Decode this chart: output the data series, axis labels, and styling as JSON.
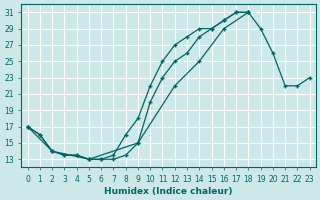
{
  "xlabel": "Humidex (Indice chaleur)",
  "bg_color": "#cce8e8",
  "line_color": "#006666",
  "grid_color": "#ffffff",
  "xlim": [
    -0.5,
    23.5
  ],
  "ylim": [
    12,
    32
  ],
  "xticks": [
    0,
    1,
    2,
    3,
    4,
    5,
    6,
    7,
    8,
    9,
    10,
    11,
    12,
    13,
    14,
    15,
    16,
    17,
    18,
    19,
    20,
    21,
    22,
    23
  ],
  "yticks": [
    13,
    15,
    17,
    19,
    21,
    23,
    25,
    27,
    29,
    31
  ],
  "line1_x": [
    0,
    1,
    2,
    3,
    4,
    5,
    6,
    7,
    8,
    9,
    10,
    11,
    12,
    13,
    14,
    15,
    16,
    17,
    18
  ],
  "line1_y": [
    17,
    16,
    14,
    13.5,
    13.5,
    13,
    13,
    13.5,
    16,
    18,
    22,
    25,
    27,
    28,
    29,
    29,
    30,
    31,
    31
  ],
  "line2_x": [
    0,
    1,
    2,
    3,
    4,
    5,
    6,
    7,
    8,
    9,
    10,
    11,
    12,
    13,
    14,
    15,
    16,
    17,
    18
  ],
  "line2_y": [
    17,
    16,
    14,
    13.5,
    13.5,
    13,
    13,
    13,
    13.5,
    15,
    20,
    23,
    25,
    26,
    28,
    29,
    30,
    31,
    31
  ],
  "line3_x": [
    0,
    2,
    5,
    9,
    12,
    14,
    16,
    18,
    19,
    20,
    21,
    22,
    23
  ],
  "line3_y": [
    17,
    14,
    13,
    15,
    22,
    25,
    29,
    31,
    29,
    26,
    22,
    22,
    23
  ]
}
